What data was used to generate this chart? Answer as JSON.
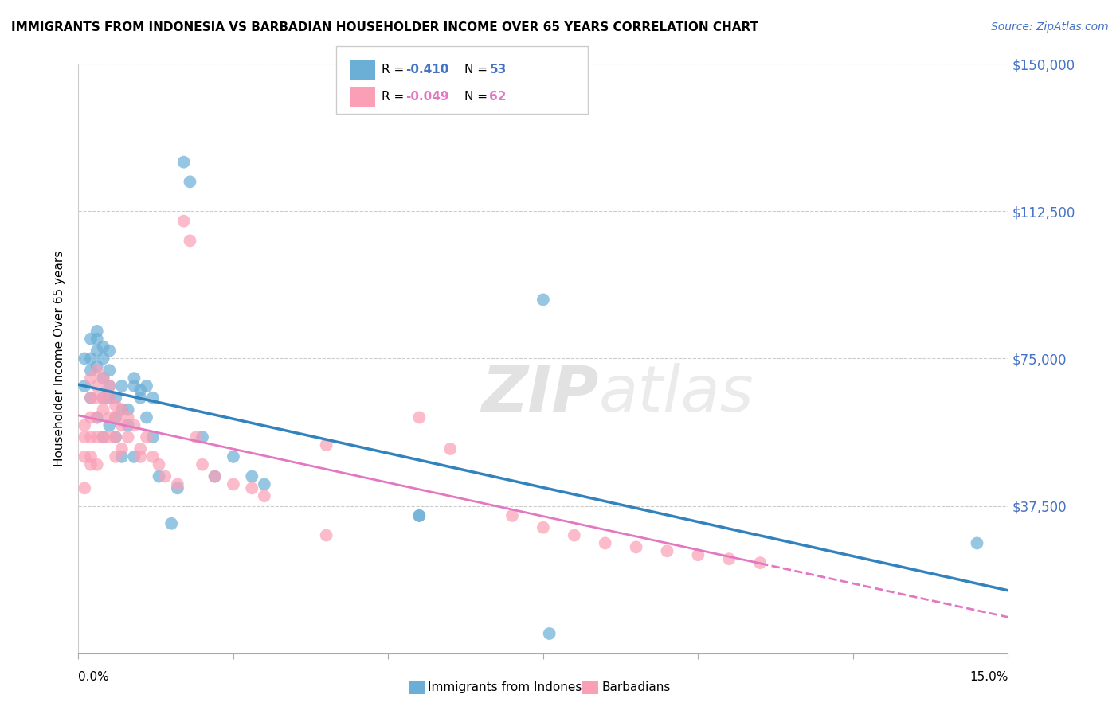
{
  "title": "IMMIGRANTS FROM INDONESIA VS BARBADIAN HOUSEHOLDER INCOME OVER 65 YEARS CORRELATION CHART",
  "source": "Source: ZipAtlas.com",
  "ylabel": "Householder Income Over 65 years",
  "xlim": [
    0.0,
    0.15
  ],
  "ylim": [
    0,
    150000
  ],
  "yticks": [
    0,
    37500,
    75000,
    112500,
    150000
  ],
  "ytick_labels": [
    "",
    "$37,500",
    "$75,000",
    "$112,500",
    "$150,000"
  ],
  "watermark_zip": "ZIP",
  "watermark_atlas": "atlas",
  "blue_color": "#6baed6",
  "pink_color": "#fa9fb5",
  "line_blue": "#3182bd",
  "line_pink": "#e377c2",
  "indonesia_x": [
    0.001,
    0.001,
    0.002,
    0.002,
    0.002,
    0.002,
    0.003,
    0.003,
    0.003,
    0.003,
    0.003,
    0.004,
    0.004,
    0.004,
    0.004,
    0.004,
    0.005,
    0.005,
    0.005,
    0.005,
    0.005,
    0.006,
    0.006,
    0.006,
    0.007,
    0.007,
    0.007,
    0.008,
    0.008,
    0.009,
    0.009,
    0.009,
    0.01,
    0.01,
    0.011,
    0.011,
    0.012,
    0.012,
    0.013,
    0.015,
    0.016,
    0.017,
    0.018,
    0.02,
    0.022,
    0.025,
    0.028,
    0.03,
    0.055,
    0.055,
    0.075,
    0.076,
    0.145
  ],
  "indonesia_y": [
    68000,
    75000,
    75000,
    80000,
    72000,
    65000,
    73000,
    77000,
    80000,
    82000,
    60000,
    78000,
    75000,
    70000,
    65000,
    55000,
    77000,
    72000,
    68000,
    65000,
    58000,
    65000,
    60000,
    55000,
    68000,
    62000,
    50000,
    62000,
    58000,
    70000,
    68000,
    50000,
    67000,
    65000,
    68000,
    60000,
    65000,
    55000,
    45000,
    33000,
    42000,
    125000,
    120000,
    55000,
    45000,
    50000,
    45000,
    43000,
    35000,
    35000,
    90000,
    5000,
    28000
  ],
  "barbadian_x": [
    0.001,
    0.001,
    0.001,
    0.001,
    0.002,
    0.002,
    0.002,
    0.002,
    0.002,
    0.002,
    0.003,
    0.003,
    0.003,
    0.003,
    0.003,
    0.003,
    0.004,
    0.004,
    0.004,
    0.004,
    0.005,
    0.005,
    0.005,
    0.005,
    0.006,
    0.006,
    0.006,
    0.006,
    0.007,
    0.007,
    0.007,
    0.008,
    0.008,
    0.009,
    0.01,
    0.01,
    0.011,
    0.012,
    0.013,
    0.014,
    0.016,
    0.017,
    0.018,
    0.019,
    0.02,
    0.022,
    0.025,
    0.028,
    0.03,
    0.04,
    0.04,
    0.055,
    0.06,
    0.07,
    0.075,
    0.08,
    0.085,
    0.09,
    0.095,
    0.1,
    0.105,
    0.11
  ],
  "barbadian_y": [
    58000,
    55000,
    50000,
    42000,
    70000,
    65000,
    60000,
    55000,
    50000,
    48000,
    72000,
    68000,
    65000,
    60000,
    55000,
    48000,
    70000,
    65000,
    62000,
    55000,
    68000,
    65000,
    60000,
    55000,
    63000,
    60000,
    55000,
    50000,
    62000,
    58000,
    52000,
    60000,
    55000,
    58000,
    52000,
    50000,
    55000,
    50000,
    48000,
    45000,
    43000,
    110000,
    105000,
    55000,
    48000,
    45000,
    43000,
    42000,
    40000,
    53000,
    30000,
    60000,
    52000,
    35000,
    32000,
    30000,
    28000,
    27000,
    26000,
    25000,
    24000,
    23000
  ]
}
